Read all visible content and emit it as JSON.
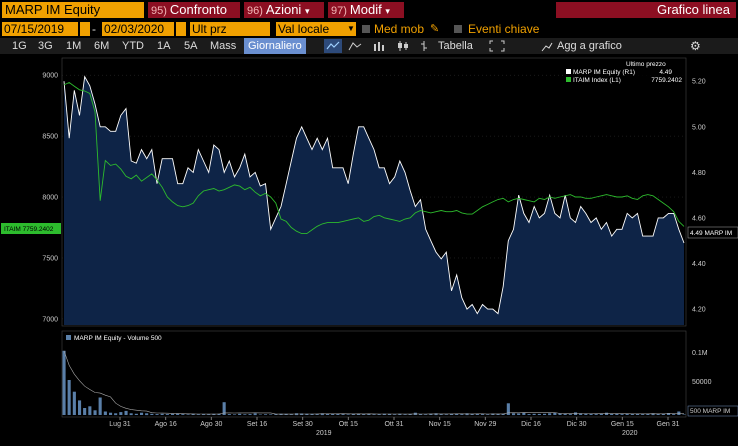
{
  "header": {
    "security": "MARP IM Equity",
    "menus": [
      {
        "num": "95)",
        "label": "Confronto"
      },
      {
        "num": "96)",
        "label": "Azioni",
        "dropdown": "▾"
      },
      {
        "num": "97)",
        "label": "Modif",
        "dropdown": "▾"
      }
    ],
    "title": "Grafico linea"
  },
  "controls": {
    "start_date": "07/15/2019",
    "date_sep": "-",
    "end_date": "02/03/2020",
    "price_field": "Ult prz",
    "currency": "Val locale",
    "moving_avg_label": "Med mob",
    "key_events_label": "Eventi chiave"
  },
  "toolbar": {
    "periods": [
      "1G",
      "3G",
      "1M",
      "6M",
      "YTD",
      "1A",
      "5A",
      "Mass"
    ],
    "frequency": "Giornaliero",
    "table": "Tabella",
    "add_to_chart": "Agg a grafico",
    "settings_icon": "gear-icon"
  },
  "colors": {
    "equity_line": "#ffffff",
    "index_line": "#2dbb2d",
    "area_fill": "#0e2447",
    "accent": "#f0a000",
    "menu_bg": "#8c0f22"
  },
  "chart_data": {
    "type": "line",
    "legend_header": "Ultimo prezzo",
    "series": [
      {
        "name": "MARP IM Equity (R1)",
        "last": "4.49",
        "axis": "right"
      },
      {
        "name": "ITAIM Index (L1)",
        "last": "7759.2402",
        "axis": "left"
      }
    ],
    "left_axis": {
      "ticks": [
        "9000",
        "8500",
        "8000",
        "7500",
        "7000"
      ],
      "ylim": [
        6950,
        9100
      ]
    },
    "right_axis": {
      "ticks": [
        "5.20",
        "5.00",
        "4.80",
        "4.60",
        "4.40",
        "4.20"
      ],
      "ylim": [
        4.13,
        5.28
      ]
    },
    "left_last_label": "ITAIM 7759.2402",
    "right_last_label": "4.49 MARP IM",
    "equity_values": [
      5.2,
      4.95,
      5.16,
      5.05,
      5.22,
      5.18,
      5.1,
      5.0,
      5.0,
      4.98,
      4.98,
      5.05,
      5.08,
      4.85,
      4.84,
      4.9,
      4.86,
      4.9,
      4.75,
      4.86,
      4.86,
      4.86,
      4.75,
      4.75,
      4.82,
      4.8,
      4.9,
      4.85,
      4.8,
      4.92,
      4.9,
      4.8,
      4.85,
      4.78,
      4.82,
      4.88,
      4.78,
      4.8,
      4.74,
      4.75,
      4.55,
      4.6,
      4.65,
      4.75,
      4.85,
      4.95,
      5.0,
      4.95,
      4.9,
      4.95,
      4.9,
      4.95,
      4.82,
      4.82,
      4.82,
      4.75,
      4.88,
      5.0,
      5.0,
      4.95,
      4.9,
      4.82,
      4.82,
      4.75,
      4.78,
      4.85,
      4.8,
      4.72,
      4.65,
      4.68,
      4.55,
      4.5,
      4.45,
      4.42,
      4.45,
      4.28,
      4.35,
      4.25,
      4.2,
      4.22,
      4.18,
      4.22,
      4.2,
      4.2,
      4.18,
      4.3,
      4.5,
      4.55,
      4.7,
      4.62,
      4.58,
      4.65,
      4.6,
      4.62,
      4.7,
      4.62,
      4.6,
      4.7,
      4.6,
      4.58,
      4.65,
      4.62,
      4.58,
      4.6,
      4.55,
      4.58,
      4.52,
      4.55,
      4.55,
      4.62,
      4.6,
      4.62,
      4.52,
      4.52,
      4.52,
      4.6,
      4.6,
      4.62,
      4.62,
      4.55,
      4.49
    ],
    "index_values": [
      8920,
      8940,
      8910,
      8880,
      8870,
      8850,
      8700,
      7970,
      8300,
      8260,
      8270,
      8230,
      8170,
      8150,
      8180,
      8130,
      8160,
      8190,
      8140,
      8080,
      8000,
      7960,
      7930,
      7920,
      7930,
      7950,
      8010,
      8050,
      8060,
      8070,
      8050,
      8060,
      8080,
      8100,
      8090,
      8060,
      8080,
      8040,
      8010,
      8030,
      8000,
      7950,
      7820,
      7800,
      7750,
      7720,
      7700,
      7700,
      7730,
      7760,
      7780,
      7790,
      7790,
      7790,
      7800,
      7810,
      7820,
      7830,
      7800,
      7810,
      7840,
      7850,
      7830,
      7820,
      7810,
      7800,
      7820,
      7830,
      7870,
      7890,
      7880,
      7870,
      7880,
      7890,
      7880,
      7880,
      7890,
      7870,
      7860,
      7860,
      7890,
      7920,
      7940,
      7960,
      7980,
      7990,
      7960,
      7980,
      7990,
      7980,
      7970,
      7960,
      7990,
      7980,
      8000,
      7990,
      8000,
      8010,
      8020,
      8000,
      8000,
      7990,
      7990,
      8000,
      8010,
      8020,
      8010,
      8000,
      8000,
      8010,
      7990,
      7980,
      8010,
      8020,
      8010,
      7980,
      7950,
      7920,
      7880,
      7800,
      7759.2402
    ],
    "x_ticks": [
      "Lug 31",
      "Ago 16",
      "Ago 30",
      "Set 16",
      "Set 30",
      "Ott 15",
      "Ott 31",
      "Nov 15",
      "Nov 29",
      "Dic 16",
      "Dic 30",
      "Gen 15",
      "Gen 31"
    ],
    "year_labels": [
      "2019",
      "2020"
    ],
    "volume": {
      "legend": "MARP IM Equity - Volume 500",
      "ticks": [
        "0.1M",
        "50000"
      ],
      "last_label": "500 MARP IM",
      "values": [
        110000,
        60000,
        40000,
        25000,
        12000,
        15000,
        8000,
        30000,
        6000,
        4000,
        3000,
        5000,
        7000,
        3000,
        2000,
        4000,
        3000,
        2000,
        1500,
        2000,
        1500,
        2000,
        2500,
        1500,
        1000,
        2000,
        1200,
        1500,
        1000,
        1800,
        2000,
        22000,
        1500,
        1000,
        2000,
        1200,
        1500,
        3000,
        800,
        1200,
        1000,
        1500,
        2000,
        1800,
        1000,
        3000,
        2500,
        2000,
        1800,
        1500,
        3000,
        2200,
        1800,
        2500,
        1500,
        1000,
        2000,
        2500,
        1500,
        1800,
        1200,
        1500,
        2000,
        1800,
        1000,
        2000,
        1200,
        1500,
        4000,
        1500,
        1000,
        2000,
        3000,
        1500,
        1000,
        2000,
        2500,
        1500,
        3000,
        1800,
        2000,
        1500,
        1000,
        2500,
        1800,
        2000,
        20000,
        3000,
        2500,
        4000,
        1500,
        2000,
        1800,
        2000,
        3000,
        3500,
        2500,
        2000,
        1500,
        4500,
        2500,
        2000,
        1800,
        1500,
        2000,
        4000,
        1800,
        2000,
        1500,
        2500,
        2000,
        1800,
        1500,
        2000,
        3000,
        2000,
        1800,
        3500,
        1500,
        6000,
        500
      ]
    }
  }
}
